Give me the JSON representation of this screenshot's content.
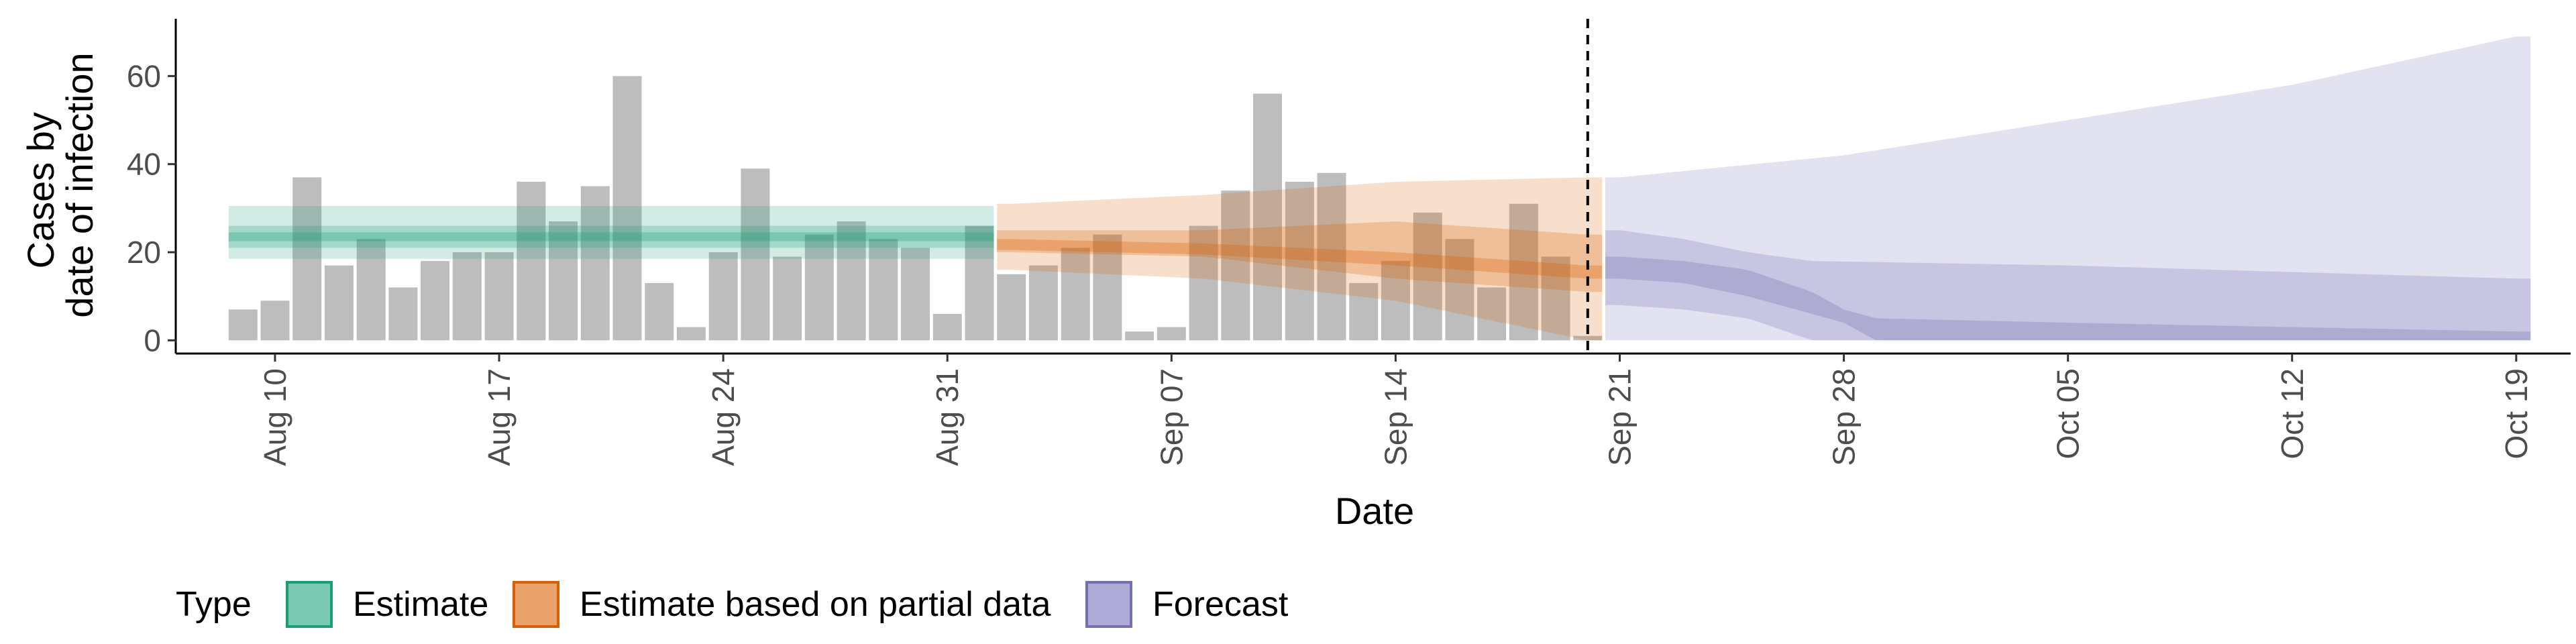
{
  "chart_data": {
    "type": "bar",
    "xlabel": "Date",
    "ylabel_lines": [
      "Cases by",
      "date of infection"
    ],
    "ylim": [
      -3,
      73
    ],
    "y_ticks": [
      0,
      20,
      40,
      60
    ],
    "x_range": [
      -2.1,
      72.7
    ],
    "x_ticks": [
      {
        "day": 1,
        "label": "Aug 10"
      },
      {
        "day": 8,
        "label": "Aug 17"
      },
      {
        "day": 15,
        "label": "Aug 24"
      },
      {
        "day": 22,
        "label": "Aug 31"
      },
      {
        "day": 29,
        "label": "Sep 07"
      },
      {
        "day": 36,
        "label": "Sep 14"
      },
      {
        "day": 43,
        "label": "Sep 21"
      },
      {
        "day": 50,
        "label": "Sep 28"
      },
      {
        "day": 57,
        "label": "Oct 05"
      },
      {
        "day": 64,
        "label": "Oct 12"
      },
      {
        "day": 71,
        "label": "Oct 19"
      }
    ],
    "vline_day": 42,
    "bars": {
      "first_day": 0,
      "values": [
        7,
        9,
        37,
        17,
        23,
        12,
        18,
        20,
        20,
        36,
        27,
        35,
        60,
        13,
        3,
        20,
        39,
        19,
        24,
        27,
        23,
        21,
        6,
        26,
        15,
        17,
        21,
        24,
        2,
        3,
        26,
        34,
        56,
        36,
        38,
        13,
        18,
        29,
        23,
        12,
        31,
        19,
        1
      ],
      "color": "#bdbdbd"
    },
    "ribbons": [
      {
        "type": "Estimate",
        "color": "#1b9e77",
        "start_day": 0,
        "end_day": 23,
        "outer": [
          [
            0,
            18.5,
            30.5
          ],
          [
            23,
            18.5,
            30.5
          ]
        ],
        "mid": [
          [
            0,
            21,
            26
          ],
          [
            23,
            21,
            26
          ]
        ],
        "inner": [
          [
            0,
            22.5,
            24.5
          ],
          [
            23,
            22.5,
            24.5
          ]
        ]
      },
      {
        "type": "Estimate based on partial data",
        "color": "#d95f02",
        "start_day": 24,
        "end_day": 42,
        "outer": [
          [
            24,
            16,
            31
          ],
          [
            30,
            14,
            33
          ],
          [
            36,
            9,
            36
          ],
          [
            42,
            0,
            37
          ]
        ],
        "mid": [
          [
            24,
            20,
            25
          ],
          [
            30,
            19,
            25
          ],
          [
            36,
            14,
            27
          ],
          [
            42,
            11,
            24
          ]
        ],
        "inner": [
          [
            24,
            20.5,
            23
          ],
          [
            30,
            19.5,
            22
          ],
          [
            36,
            17,
            20
          ],
          [
            42,
            14,
            17
          ]
        ]
      },
      {
        "type": "Forecast",
        "color": "#7570b3",
        "start_day": 43,
        "end_day": 71,
        "outer": [
          [
            43,
            0,
            37
          ],
          [
            50,
            0,
            42
          ],
          [
            57,
            0,
            50
          ],
          [
            64,
            0,
            58
          ],
          [
            71,
            0,
            69
          ]
        ],
        "mid": [
          [
            43,
            8,
            25
          ],
          [
            45,
            7,
            23
          ],
          [
            47,
            5,
            20
          ],
          [
            49,
            0,
            18
          ],
          [
            57,
            0,
            17
          ],
          [
            64,
            0,
            15.5
          ],
          [
            71,
            0,
            14
          ]
        ],
        "inner": [
          [
            43,
            14,
            19
          ],
          [
            45,
            13,
            18
          ],
          [
            47,
            10,
            16
          ],
          [
            49,
            6,
            11
          ],
          [
            50,
            4,
            7
          ],
          [
            51,
            0,
            5
          ],
          [
            57,
            0,
            4
          ],
          [
            64,
            0,
            3
          ],
          [
            71,
            0,
            2
          ]
        ]
      }
    ],
    "legend": {
      "title": "Type",
      "items": [
        {
          "label": "Estimate",
          "fill": "#79c9b0",
          "stroke": "#1b9e77"
        },
        {
          "label": "Estimate based on partial data",
          "fill": "#eaa26c",
          "stroke": "#d95f02"
        },
        {
          "label": "Forecast",
          "fill": "#aeaad6",
          "stroke": "#7570b3"
        }
      ]
    }
  }
}
